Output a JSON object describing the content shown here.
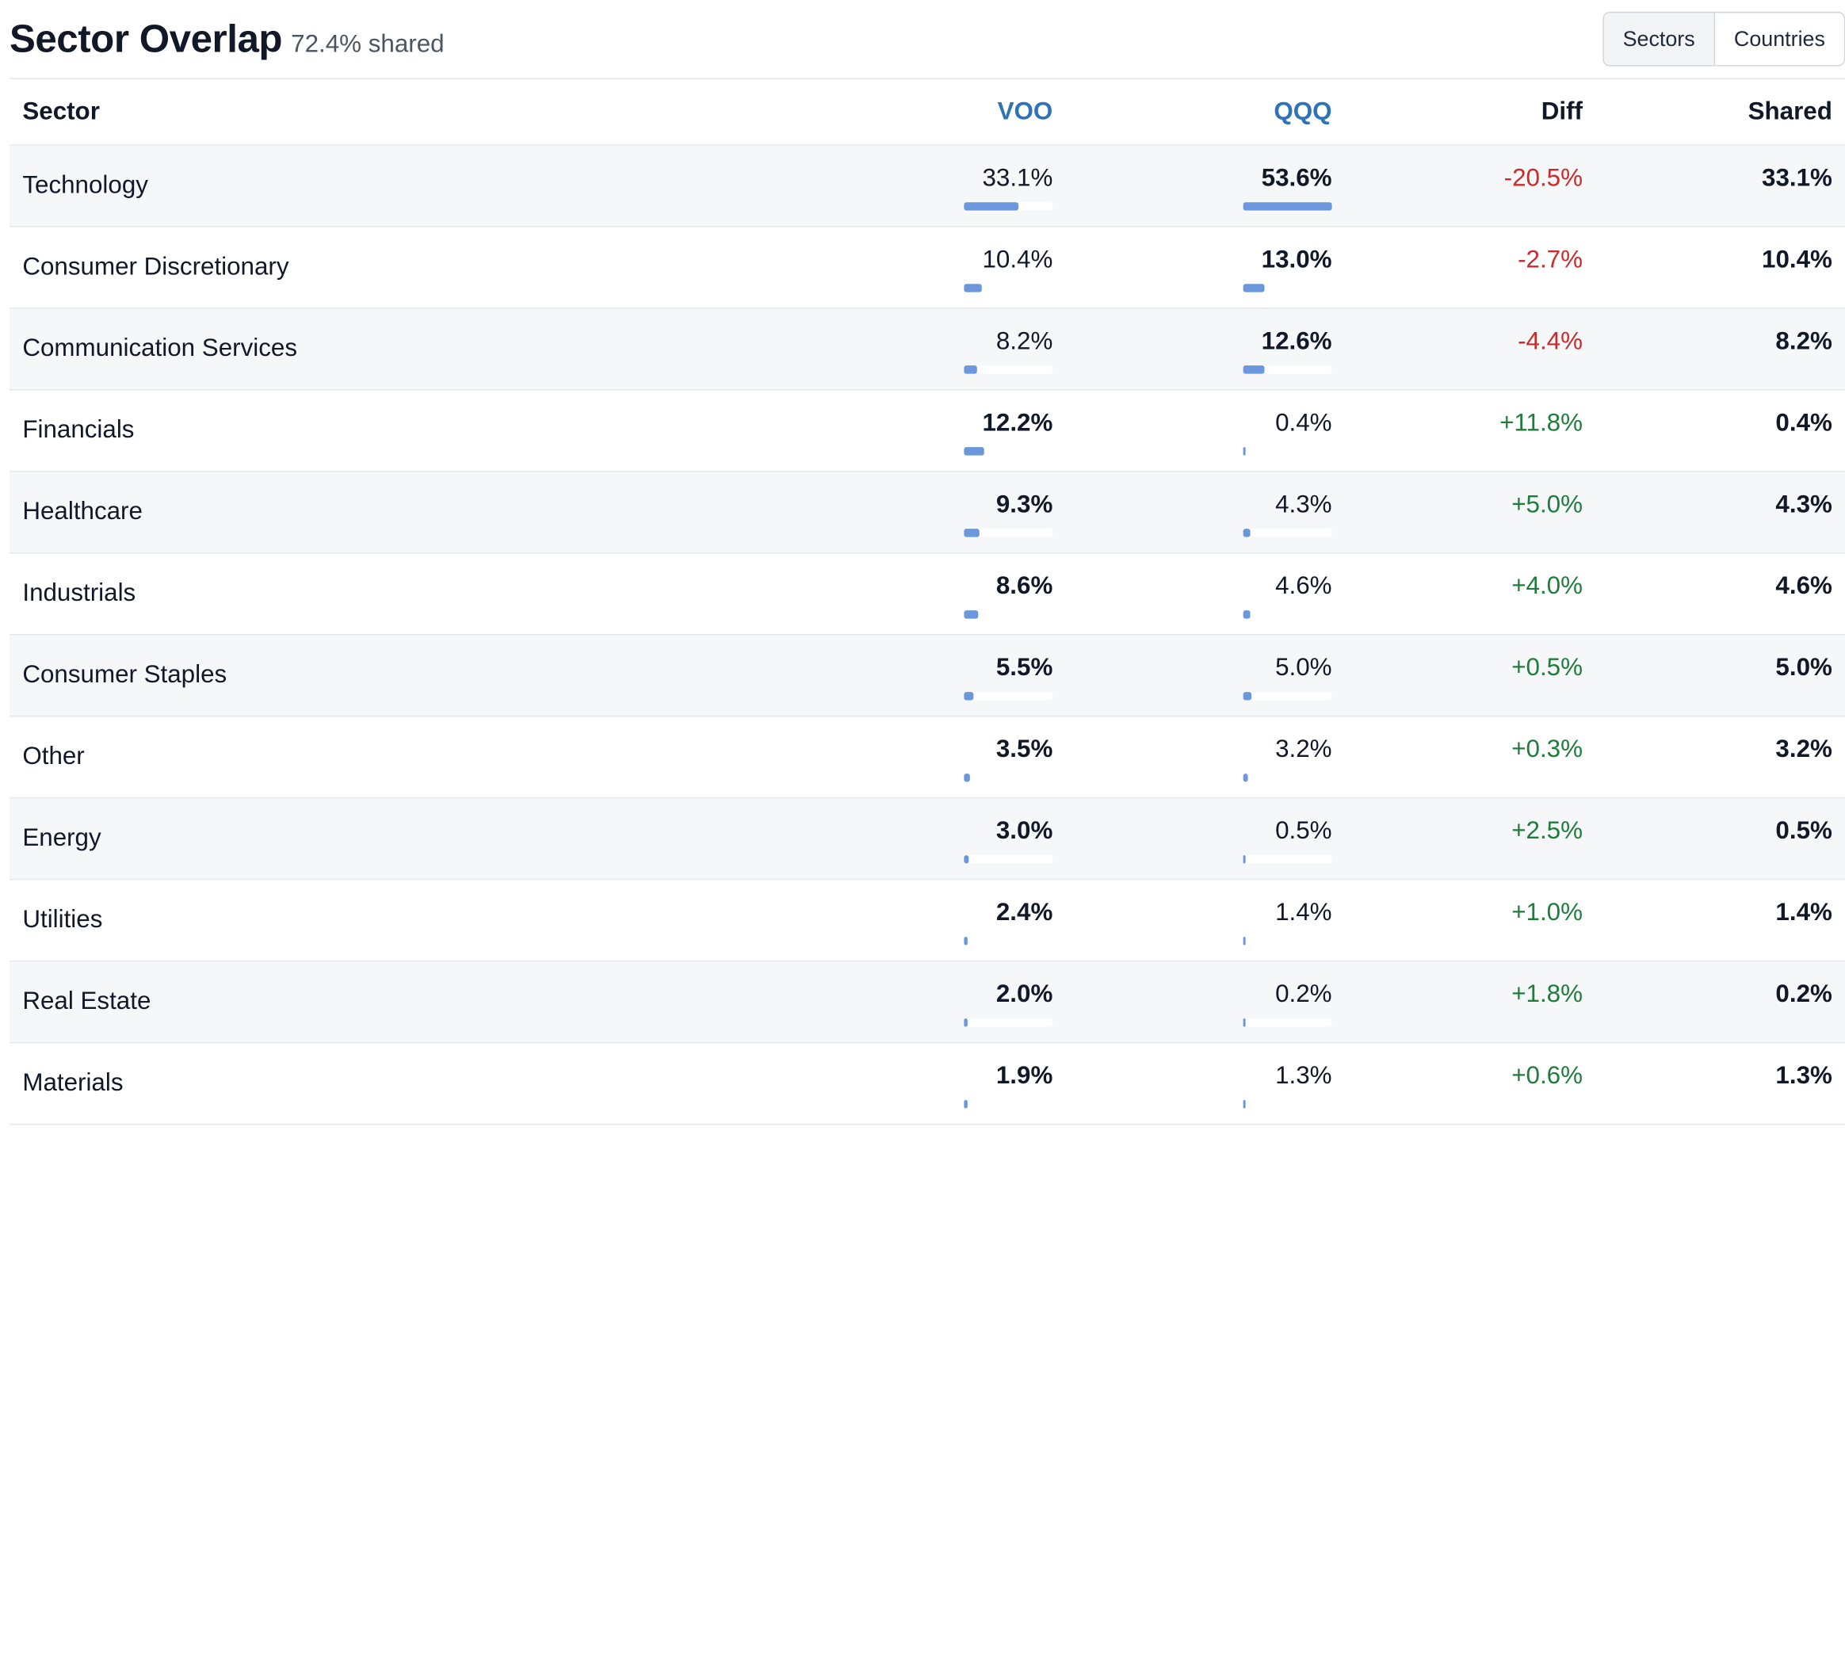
{
  "header": {
    "title": "Sector Overlap",
    "subtitle": "72.4% shared"
  },
  "toggle": {
    "options": [
      "Sectors",
      "Countries"
    ],
    "selected": "Sectors"
  },
  "table": {
    "columns": {
      "sector": "Sector",
      "voo": "VOO",
      "qqq": "QQQ",
      "diff": "Diff",
      "shared": "Shared"
    },
    "rows": [
      {
        "sector": "Technology",
        "voo": "33.1%",
        "qqq": "53.6%",
        "diff": "-20.5%",
        "shared": "33.1%",
        "voo_pct": 33.1,
        "qqq_pct": 53.6
      },
      {
        "sector": "Consumer Discretionary",
        "voo": "10.4%",
        "qqq": "13.0%",
        "diff": "-2.7%",
        "shared": "10.4%",
        "voo_pct": 10.4,
        "qqq_pct": 13.0
      },
      {
        "sector": "Communication Services",
        "voo": "8.2%",
        "qqq": "12.6%",
        "diff": "-4.4%",
        "shared": "8.2%",
        "voo_pct": 8.2,
        "qqq_pct": 12.6
      },
      {
        "sector": "Financials",
        "voo": "12.2%",
        "qqq": "0.4%",
        "diff": "+11.8%",
        "shared": "0.4%",
        "voo_pct": 12.2,
        "qqq_pct": 0.4
      },
      {
        "sector": "Healthcare",
        "voo": "9.3%",
        "qqq": "4.3%",
        "diff": "+5.0%",
        "shared": "4.3%",
        "voo_pct": 9.3,
        "qqq_pct": 4.3
      },
      {
        "sector": "Industrials",
        "voo": "8.6%",
        "qqq": "4.6%",
        "diff": "+4.0%",
        "shared": "4.6%",
        "voo_pct": 8.6,
        "qqq_pct": 4.6
      },
      {
        "sector": "Consumer Staples",
        "voo": "5.5%",
        "qqq": "5.0%",
        "diff": "+0.5%",
        "shared": "5.0%",
        "voo_pct": 5.5,
        "qqq_pct": 5.0
      },
      {
        "sector": "Other",
        "voo": "3.5%",
        "qqq": "3.2%",
        "diff": "+0.3%",
        "shared": "3.2%",
        "voo_pct": 3.5,
        "qqq_pct": 3.2
      },
      {
        "sector": "Energy",
        "voo": "3.0%",
        "qqq": "0.5%",
        "diff": "+2.5%",
        "shared": "0.5%",
        "voo_pct": 3.0,
        "qqq_pct": 0.5
      },
      {
        "sector": "Utilities",
        "voo": "2.4%",
        "qqq": "1.4%",
        "diff": "+1.0%",
        "shared": "1.4%",
        "voo_pct": 2.4,
        "qqq_pct": 1.4
      },
      {
        "sector": "Real Estate",
        "voo": "2.0%",
        "qqq": "0.2%",
        "diff": "+1.8%",
        "shared": "0.2%",
        "voo_pct": 2.0,
        "qqq_pct": 0.2
      },
      {
        "sector": "Materials",
        "voo": "1.9%",
        "qqq": "1.3%",
        "diff": "+0.6%",
        "shared": "1.3%",
        "voo_pct": 1.9,
        "qqq_pct": 1.3
      }
    ]
  },
  "colors": {
    "fund_header": "#2e73b8",
    "bar": "#6b97dd",
    "negative": "#cc2a2a",
    "positive": "#1e7d3a"
  }
}
